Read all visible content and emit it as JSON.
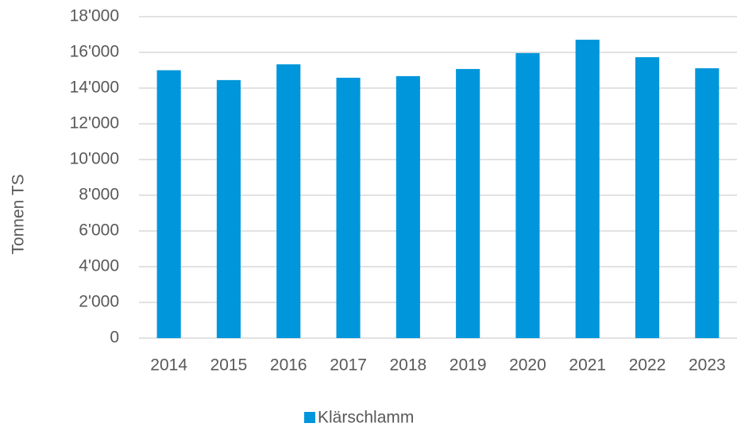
{
  "chart_data": {
    "type": "bar",
    "y_label": "Tonnen TS",
    "categories": [
      "2014",
      "2015",
      "2016",
      "2017",
      "2018",
      "2019",
      "2020",
      "2021",
      "2022",
      "2023"
    ],
    "series": [
      {
        "name": "Klärschlamm",
        "color": "#0096db",
        "values": [
          15000,
          14450,
          15330,
          14580,
          14670,
          15070,
          15960,
          16710,
          15730,
          15110
        ]
      }
    ],
    "ylim": [
      0,
      18000
    ],
    "yticks": [
      0,
      {
        "value": 2000,
        "label": "2'000"
      },
      {
        "value": 4000,
        "label": "4'000"
      },
      {
        "value": 6000,
        "label": "6'000"
      },
      {
        "value": 8000,
        "label": "8'000"
      },
      {
        "value": 10000,
        "label": "10'000"
      },
      {
        "value": 12000,
        "label": "12'000"
      },
      {
        "value": 14000,
        "label": "14'000"
      },
      {
        "value": 16000,
        "label": "16'000"
      },
      {
        "value": 18000,
        "label": "18'000"
      }
    ],
    "grid": true,
    "legend": "bottom"
  }
}
